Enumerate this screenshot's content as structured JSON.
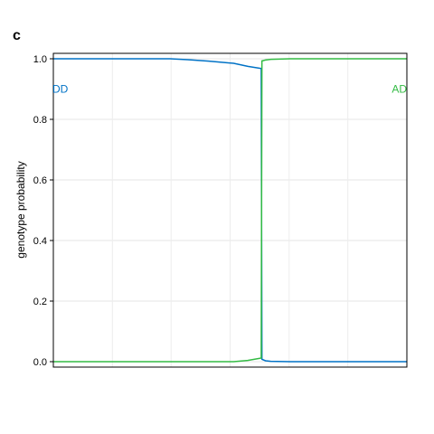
{
  "panel_label": "c",
  "chart_data": {
    "type": "line",
    "title": "",
    "xlabel": "",
    "ylabel": "genotype probability",
    "ylim": [
      0,
      1
    ],
    "yticks": [
      "0.0",
      "0.2",
      "0.4",
      "0.6",
      "0.8",
      "1.0"
    ],
    "xlim": [
      0,
      100
    ],
    "grid": true,
    "legend": "inline labels at top-left and top-right",
    "series": [
      {
        "name": "DD",
        "color": "#0072c6",
        "x": [
          0,
          33,
          38,
          44,
          51,
          55,
          58.8,
          59.0,
          60.0,
          61.5,
          67,
          100
        ],
        "y": [
          1.0,
          1.0,
          0.997,
          0.992,
          0.985,
          0.975,
          0.968,
          0.008,
          0.003,
          0.001,
          0.0,
          0.0
        ]
      },
      {
        "name": "AD",
        "color": "#33bb44",
        "x": [
          0,
          33,
          38,
          44,
          51,
          55,
          58.8,
          59.0,
          60.0,
          61.5,
          67,
          100
        ],
        "y": [
          0.0,
          0.0,
          0.0,
          0.0,
          0.0,
          0.004,
          0.012,
          0.993,
          0.996,
          0.998,
          1.0,
          1.0
        ]
      }
    ]
  }
}
